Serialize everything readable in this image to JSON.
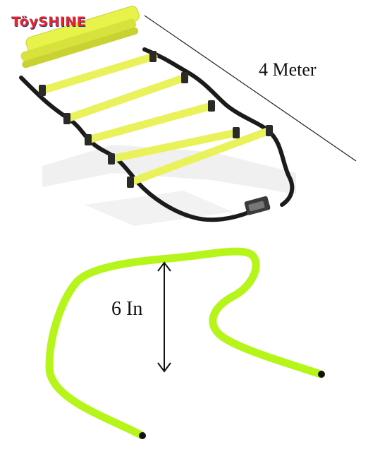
{
  "brand": {
    "logo_text": "TöySHINE",
    "logo_color": "#e8252b",
    "logo_outline_color": "#1a3f8f"
  },
  "ladder": {
    "length_label": "4 Meter",
    "rung_color": "#eef55a",
    "strap_color": "#1b1b1b"
  },
  "hurdle": {
    "height_label": "6 In",
    "color": "#b6f51a"
  }
}
